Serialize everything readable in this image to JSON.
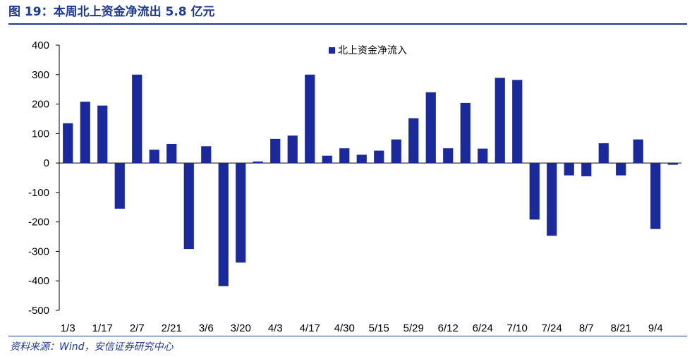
{
  "header": {
    "title": "图 19：本周北上资金净流出 5.8 亿元"
  },
  "footer": {
    "source": "资料来源：Wind，安信证券研究中心"
  },
  "colors": {
    "accent": "#1f3a93",
    "bar": "#1a2a9c"
  },
  "chart_data": {
    "type": "bar",
    "title": "",
    "xlabel": "",
    "ylabel": "",
    "ylim": [
      -500,
      400
    ],
    "yticks": [
      400,
      300,
      200,
      100,
      0,
      -100,
      -200,
      -300,
      -400,
      -500
    ],
    "legend": {
      "position": "top-center"
    },
    "grid": false,
    "x_tick_labels": [
      "1/3",
      "1/17",
      "2/7",
      "2/21",
      "3/6",
      "3/20",
      "4/3",
      "4/17",
      "4/30",
      "5/15",
      "5/29",
      "6/12",
      "6/24",
      "7/10",
      "7/24",
      "8/7",
      "8/21",
      "9/4"
    ],
    "series": [
      {
        "name": "北上资金净流入",
        "values": [
          135,
          208,
          195,
          -155,
          300,
          45,
          65,
          -292,
          57,
          -418,
          -338,
          5,
          82,
          93,
          300,
          25,
          50,
          28,
          42,
          80,
          152,
          240,
          50,
          204,
          49,
          289,
          282,
          -192,
          -247,
          -42,
          -45,
          67,
          -42,
          80,
          -224,
          -6
        ]
      }
    ]
  }
}
